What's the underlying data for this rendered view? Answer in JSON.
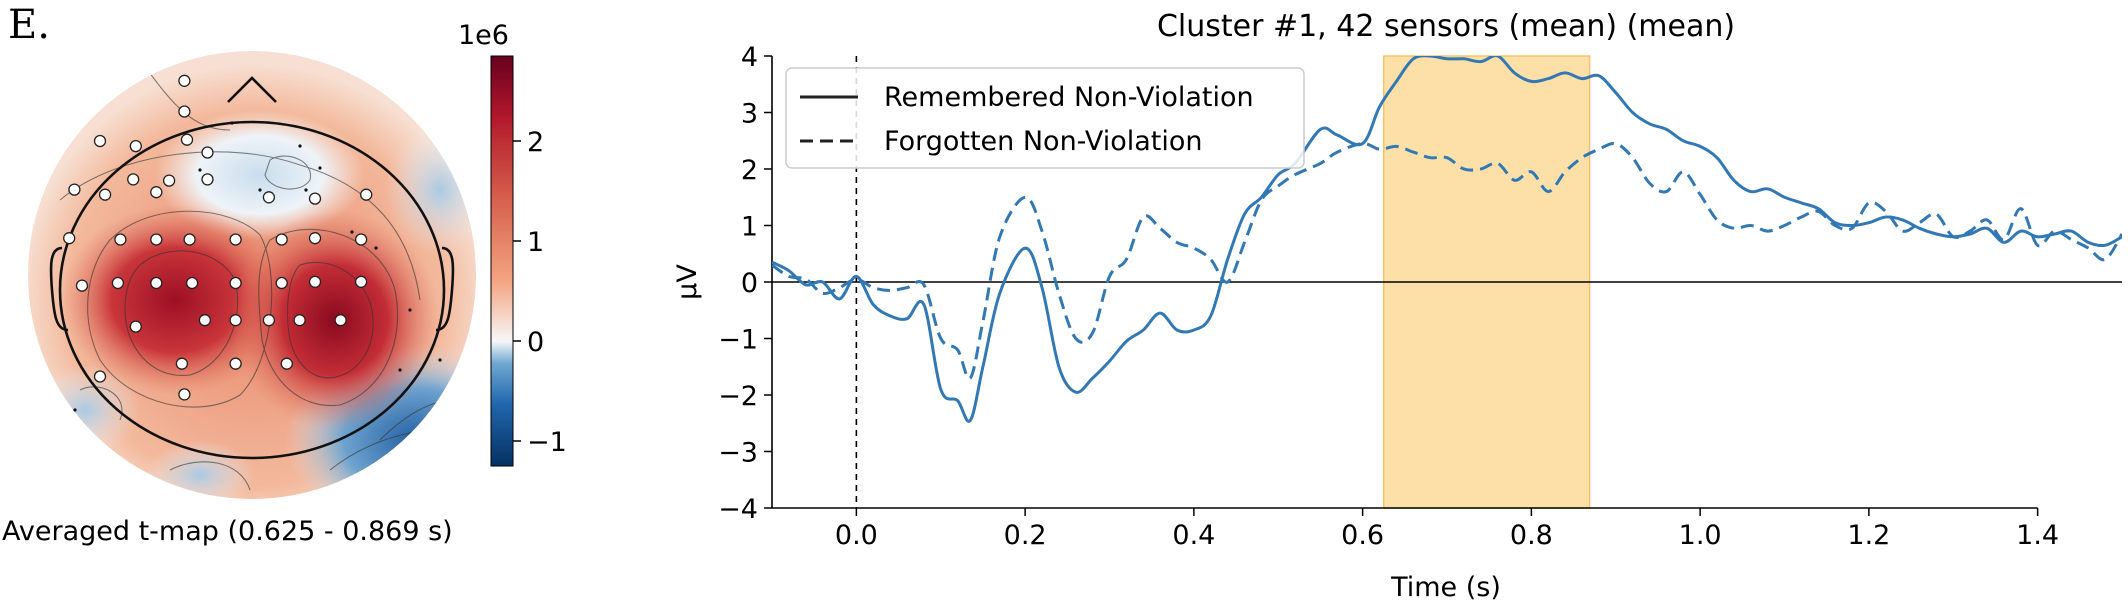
{
  "panel_label": "E.",
  "topomap": {
    "caption": "Averaged t-map (0.625 - 0.869 s)",
    "colorbar": {
      "exponent_label": "1e6",
      "ticks": [
        -1,
        0,
        1,
        2
      ],
      "tick_labels": [
        "−1",
        "0",
        "1",
        "2"
      ],
      "range": [
        -1.25,
        2.85
      ],
      "colormap": "RdBu_r"
    },
    "sensors_count": 42,
    "colors": {
      "red": "#c0392b",
      "darkred": "#8b0c1f",
      "blue": "#3a75b5",
      "darkblue": "#1a4d8f"
    }
  },
  "chart_data": {
    "type": "line",
    "title": "Cluster #1, 42 sensors (mean) (mean)",
    "xlabel": "Time (s)",
    "ylabel": "µV",
    "xlim": [
      -0.1,
      1.5
    ],
    "ylim": [
      -4,
      4
    ],
    "xticks": [
      0.0,
      0.2,
      0.4,
      0.6,
      0.8,
      1.0,
      1.2,
      1.4
    ],
    "xtick_labels": [
      "0.0",
      "0.2",
      "0.4",
      "0.6",
      "0.8",
      "1.0",
      "1.2",
      "1.4"
    ],
    "yticks": [
      -4,
      -3,
      -2,
      -1,
      0,
      1,
      2,
      3,
      4
    ],
    "ytick_labels": [
      "−4",
      "−3",
      "−2",
      "−1",
      "0",
      "1",
      "2",
      "3",
      "4"
    ],
    "highlight_span": [
      0.625,
      0.869
    ],
    "highlight_color": "#fde0a8",
    "line_color": "#3178b5",
    "legend_placement": "upper-left",
    "series": [
      {
        "name": "Remembered Non-Violation",
        "style": "solid",
        "x": [
          -0.1,
          -0.08,
          -0.06,
          -0.04,
          -0.02,
          0.0,
          0.02,
          0.04,
          0.06,
          0.08,
          0.1,
          0.12,
          0.135,
          0.15,
          0.17,
          0.2,
          0.22,
          0.24,
          0.26,
          0.28,
          0.3,
          0.32,
          0.34,
          0.36,
          0.38,
          0.4,
          0.42,
          0.44,
          0.46,
          0.48,
          0.5,
          0.52,
          0.55,
          0.57,
          0.6,
          0.62,
          0.64,
          0.66,
          0.68,
          0.7,
          0.72,
          0.74,
          0.76,
          0.78,
          0.8,
          0.82,
          0.84,
          0.86,
          0.88,
          0.9,
          0.92,
          0.94,
          0.96,
          0.98,
          1.0,
          1.02,
          1.04,
          1.06,
          1.08,
          1.1,
          1.12,
          1.14,
          1.16,
          1.18,
          1.2,
          1.22,
          1.24,
          1.26,
          1.28,
          1.3,
          1.32,
          1.34,
          1.36,
          1.38,
          1.4,
          1.42,
          1.44,
          1.46,
          1.48,
          1.5
        ],
        "y": [
          0.35,
          0.2,
          -0.05,
          0.0,
          -0.3,
          0.1,
          -0.4,
          -0.6,
          -0.65,
          -0.4,
          -1.9,
          -2.1,
          -2.45,
          -1.5,
          -0.2,
          0.6,
          -0.1,
          -1.5,
          -1.95,
          -1.7,
          -1.4,
          -1.05,
          -0.85,
          -0.55,
          -0.85,
          -0.85,
          -0.6,
          0.4,
          1.2,
          1.5,
          1.9,
          2.1,
          2.7,
          2.6,
          2.45,
          3.1,
          3.55,
          3.95,
          4.0,
          3.95,
          3.95,
          3.9,
          4.0,
          3.7,
          3.55,
          3.6,
          3.7,
          3.6,
          3.65,
          3.35,
          3.0,
          2.8,
          2.7,
          2.5,
          2.4,
          2.2,
          1.8,
          1.6,
          1.65,
          1.5,
          1.4,
          1.3,
          1.05,
          1.0,
          1.05,
          1.15,
          1.1,
          0.95,
          0.85,
          0.8,
          0.85,
          0.95,
          0.7,
          0.9,
          0.8,
          0.85,
          0.9,
          0.7,
          0.65,
          0.8
        ]
      },
      {
        "name": "Forgotten Non-Violation",
        "style": "dashed",
        "x": [
          -0.1,
          -0.08,
          -0.06,
          -0.04,
          -0.02,
          0.0,
          0.02,
          0.04,
          0.06,
          0.08,
          0.1,
          0.12,
          0.135,
          0.15,
          0.17,
          0.2,
          0.22,
          0.24,
          0.26,
          0.28,
          0.3,
          0.32,
          0.34,
          0.36,
          0.38,
          0.4,
          0.42,
          0.44,
          0.46,
          0.48,
          0.5,
          0.52,
          0.55,
          0.57,
          0.6,
          0.62,
          0.64,
          0.66,
          0.68,
          0.7,
          0.72,
          0.74,
          0.76,
          0.78,
          0.8,
          0.82,
          0.84,
          0.86,
          0.88,
          0.9,
          0.92,
          0.94,
          0.96,
          0.98,
          1.0,
          1.02,
          1.04,
          1.06,
          1.08,
          1.1,
          1.12,
          1.14,
          1.16,
          1.18,
          1.2,
          1.22,
          1.24,
          1.26,
          1.28,
          1.3,
          1.32,
          1.34,
          1.36,
          1.38,
          1.4,
          1.42,
          1.44,
          1.46,
          1.48,
          1.5
        ],
        "y": [
          0.3,
          0.1,
          0.05,
          -0.2,
          -0.1,
          0.05,
          -0.1,
          -0.15,
          -0.1,
          -0.05,
          -1.0,
          -1.2,
          -1.7,
          -0.7,
          0.8,
          1.5,
          0.9,
          -0.2,
          -1.0,
          -0.9,
          0.1,
          0.4,
          1.15,
          0.95,
          0.7,
          0.6,
          0.4,
          0.0,
          0.7,
          1.45,
          1.7,
          1.9,
          2.1,
          2.3,
          2.45,
          2.35,
          2.4,
          2.3,
          2.2,
          2.2,
          2.0,
          2.0,
          2.1,
          1.8,
          1.95,
          1.6,
          1.95,
          2.2,
          2.35,
          2.45,
          2.2,
          1.75,
          1.6,
          1.95,
          1.55,
          1.1,
          0.95,
          1.0,
          0.9,
          1.0,
          1.15,
          1.25,
          1.0,
          0.95,
          1.4,
          1.25,
          0.9,
          1.05,
          1.2,
          0.8,
          0.9,
          1.1,
          0.75,
          1.3,
          0.65,
          0.9,
          0.75,
          0.6,
          0.4,
          0.85
        ]
      }
    ]
  }
}
